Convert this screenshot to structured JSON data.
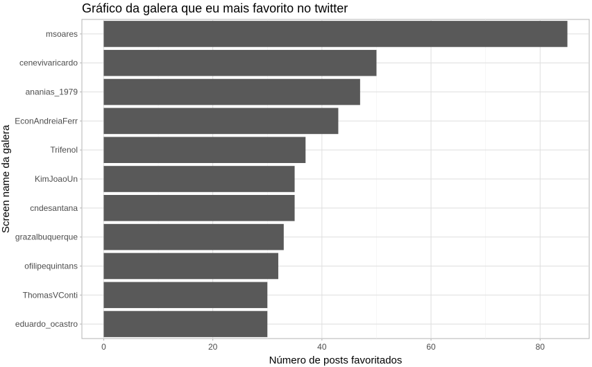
{
  "chart_data": {
    "type": "bar",
    "orientation": "horizontal",
    "title": "Gráfico da galera que eu mais favorito no twitter",
    "xlabel": "Número de posts favoritados",
    "ylabel": "Screen name da galera",
    "categories": [
      "msoares",
      "cenevivaricardo",
      "ananias_1979",
      "EconAndreiaFerr",
      "Trifenol",
      "KimJoaoUn",
      "cndesantana",
      "grazalbuquerque",
      "ofilipequintans",
      "ThomasVConti",
      "eduardo_ocastro"
    ],
    "values": [
      85,
      50,
      47,
      43,
      37,
      35,
      35,
      33,
      32,
      30,
      30
    ],
    "xlim": [
      -4,
      89
    ],
    "xticks": [
      0,
      20,
      40,
      60,
      80
    ],
    "grid": true,
    "bar_color": "#595959"
  }
}
